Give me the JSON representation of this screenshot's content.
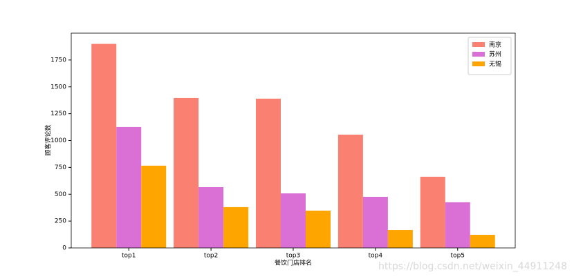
{
  "chart_data": {
    "type": "bar",
    "xlabel": "餐饮门店排名",
    "ylabel": "顾客评论数",
    "categories": [
      "top1",
      "top2",
      "top3",
      "top4",
      "top5"
    ],
    "series": [
      {
        "name": "南京",
        "color": "#fa8072",
        "values": [
          1900,
          1396,
          1390,
          1055,
          663
        ]
      },
      {
        "name": "苏州",
        "color": "#da70d6",
        "values": [
          1126,
          566,
          508,
          476,
          425
        ]
      },
      {
        "name": "无锡",
        "color": "#ffa500",
        "values": [
          766,
          380,
          347,
          167,
          122
        ]
      }
    ],
    "ylim": [
      0,
      2000
    ],
    "yticks": [
      0,
      250,
      500,
      750,
      1000,
      1250,
      1500,
      1750
    ],
    "legend": "upper right",
    "grid": false
  },
  "watermark": "https://blog.csdn.net/weixin_44911248"
}
